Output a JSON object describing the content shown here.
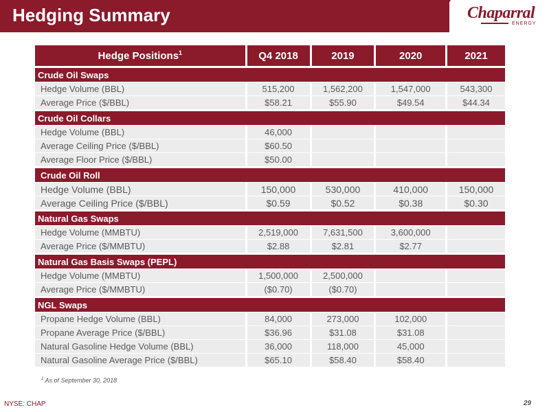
{
  "header": {
    "title": "Hedging Summary"
  },
  "logo": {
    "name": "Chaparral",
    "sub": "ENERGY"
  },
  "table": {
    "columns": [
      "Hedge Positions",
      "Q4 2018",
      "2019",
      "2020",
      "2021"
    ],
    "title_sup": "1",
    "sections": [
      {
        "name": "Crude Oil Swaps",
        "rows": [
          {
            "label": "Hedge Volume (BBL)",
            "values": [
              "515,200",
              "1,562,200",
              "1,547,000",
              "543,300"
            ]
          },
          {
            "label": "Average Price ($/BBL)",
            "values": [
              "$58.21",
              "$55.90",
              "$49.54",
              "$44.34"
            ]
          }
        ]
      },
      {
        "name": "Crude Oil Collars",
        "rows": [
          {
            "label": "Hedge Volume (BBL)",
            "values": [
              "46,000",
              "",
              "",
              ""
            ]
          },
          {
            "label": "Average Ceiling Price ($/BBL)",
            "values": [
              "$60.50",
              "",
              "",
              ""
            ]
          },
          {
            "label": "Average Floor Price ($/BBL)",
            "values": [
              "$50.00",
              "",
              "",
              ""
            ]
          }
        ]
      },
      {
        "name": "Crude Oil Roll",
        "rows": [
          {
            "label": "Hedge Volume (BBL)",
            "values": [
              "150,000",
              "530,000",
              "410,000",
              "150,000"
            ]
          },
          {
            "label": "Average Ceiling Price ($/BBL)",
            "values": [
              "$0.59",
              "$0.52",
              "$0.38",
              "$0.30"
            ]
          }
        ]
      },
      {
        "name": "Natural Gas Swaps",
        "rows": [
          {
            "label": "Hedge Volume (MMBTU)",
            "values": [
              "2,519,000",
              "7,631,500",
              "3,600,000",
              ""
            ]
          },
          {
            "label": "Average Price ($/MMBTU)",
            "values": [
              "$2.88",
              "$2.81",
              "$2.77",
              ""
            ]
          }
        ]
      },
      {
        "name": "Natural Gas Basis Swaps (PEPL)",
        "rows": [
          {
            "label": "Hedge Volume (MMBTU)",
            "values": [
              "1,500,000",
              "2,500,000",
              "",
              ""
            ]
          },
          {
            "label": "Average Price ($/MMBTU)",
            "values": [
              "($0.70)",
              "($0.70)",
              "",
              ""
            ]
          }
        ]
      },
      {
        "name": "NGL Swaps",
        "rows": [
          {
            "label": "Propane Hedge Volume (BBL)",
            "values": [
              "84,000",
              "273,000",
              "102,000",
              ""
            ]
          },
          {
            "label": "Propane Average Price  ($/BBL)",
            "values": [
              "$36.96",
              "$31.08",
              "$31.08",
              ""
            ]
          },
          {
            "label": "Natural Gasoline Hedge Volume (BBL)",
            "values": [
              "36,000",
              "118,000",
              "45,000",
              ""
            ]
          },
          {
            "label": "Natural Gasoline Average Price ($/BBL)",
            "values": [
              "$65.10",
              "$58.40",
              "$58.40",
              ""
            ]
          }
        ]
      }
    ]
  },
  "footnote": {
    "marker": "1",
    "text": "As of September 30, 2018"
  },
  "footer": {
    "ticker": "NYSE: CHAP",
    "page": "29"
  }
}
